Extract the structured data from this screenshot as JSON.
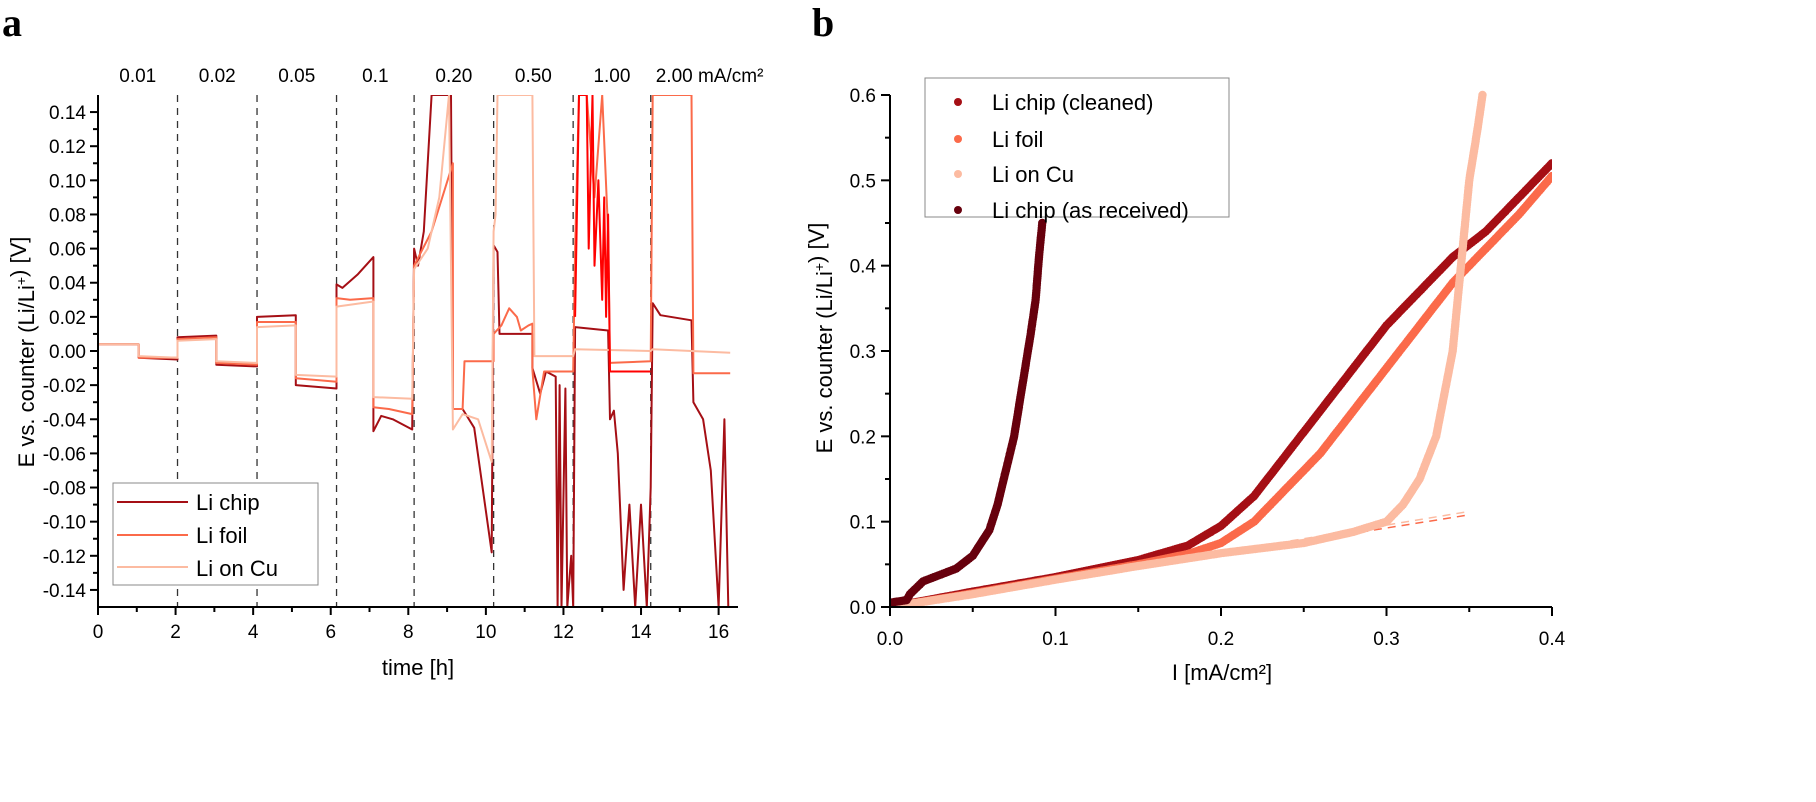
{
  "figure": {
    "panel_a_label": "a",
    "panel_b_label": "b"
  },
  "chart_data": [
    {
      "id": "a",
      "type": "line",
      "title": "",
      "xlabel": "time [h]",
      "ylabel": "E vs. counter (Li/Li+) [V]",
      "xlim": [
        0,
        16.5
      ],
      "ylim": [
        -0.15,
        0.15
      ],
      "xticks": [
        0,
        2,
        4,
        6,
        8,
        10,
        12,
        14,
        16
      ],
      "xtick_labels": [
        "0",
        "2",
        "4",
        "6",
        "8",
        "10",
        "12",
        "14",
        "16"
      ],
      "yticks": [
        0.14,
        0.12,
        0.1,
        0.08,
        0.06,
        0.04,
        0.02,
        0.0,
        -0.02,
        -0.04,
        -0.06,
        -0.08,
        -0.1,
        -0.12,
        -0.14
      ],
      "ytick_labels": [
        "0.14",
        "0.12",
        "0.10",
        "0.08",
        "0.06",
        "0.04",
        "0.02",
        "0.00",
        "-0.02",
        "-0.04",
        "-0.06",
        "-0.08",
        "-0.10",
        "-0.12",
        "-0.14"
      ],
      "current_density_labels": [
        "0.01",
        "0.02",
        "0.05",
        "0.1",
        "0.20",
        "0.50",
        "1.00",
        "2.00 mA/cm²"
      ],
      "step_boundaries_h": [
        2.05,
        4.1,
        6.15,
        8.15,
        10.2,
        12.25,
        14.25
      ],
      "legend": {
        "placement": "bottom-left",
        "entries": [
          "Li chip",
          "Li foil",
          "Li on Cu"
        ]
      },
      "grid": false,
      "series": [
        {
          "name": "Li chip",
          "color": "#a50f15",
          "points": [
            [
              0,
              0.004
            ],
            [
              1.05,
              0.004
            ],
            [
              1.05,
              -0.004
            ],
            [
              2.05,
              -0.005
            ],
            [
              2.05,
              0.008
            ],
            [
              3.05,
              0.009
            ],
            [
              3.05,
              -0.008
            ],
            [
              4.1,
              -0.009
            ],
            [
              4.1,
              0.02
            ],
            [
              5.1,
              0.021
            ],
            [
              5.1,
              -0.02
            ],
            [
              6.15,
              -0.022
            ],
            [
              6.15,
              0.039
            ],
            [
              6.3,
              0.037
            ],
            [
              6.7,
              0.045
            ],
            [
              7.1,
              0.055
            ],
            [
              7.1,
              -0.047
            ],
            [
              7.3,
              -0.038
            ],
            [
              7.6,
              -0.04
            ],
            [
              8.1,
              -0.046
            ],
            [
              8.15,
              0.06
            ],
            [
              8.25,
              0.05
            ],
            [
              8.4,
              0.07
            ],
            [
              8.6,
              0.15
            ],
            [
              9.1,
              0.15
            ],
            [
              9.15,
              -0.034
            ],
            [
              9.4,
              -0.034
            ],
            [
              9.7,
              -0.045
            ],
            [
              10.15,
              -0.118
            ],
            [
              10.2,
              0.062
            ],
            [
              10.3,
              0.058
            ],
            [
              10.35,
              0.01
            ],
            [
              11.2,
              0.01
            ],
            [
              11.2,
              -0.01
            ],
            [
              11.4,
              -0.025
            ],
            [
              11.55,
              -0.012
            ],
            [
              11.8,
              -0.015
            ],
            [
              11.85,
              -0.15
            ],
            [
              11.9,
              -0.02
            ],
            [
              11.95,
              -0.15
            ],
            [
              12.05,
              -0.022
            ],
            [
              12.1,
              -0.15
            ],
            [
              12.2,
              -0.12
            ],
            [
              12.25,
              -0.15
            ],
            [
              12.3,
              0.014
            ],
            [
              13.15,
              0.012
            ],
            [
              13.2,
              -0.04
            ],
            [
              13.3,
              -0.035
            ],
            [
              13.4,
              -0.06
            ],
            [
              13.55,
              -0.14
            ],
            [
              13.7,
              -0.09
            ],
            [
              13.85,
              -0.15
            ],
            [
              14.0,
              -0.09
            ],
            [
              14.15,
              -0.15
            ],
            [
              14.25,
              -0.08
            ],
            [
              14.3,
              0.028
            ],
            [
              14.5,
              0.021
            ],
            [
              15.3,
              0.018
            ],
            [
              15.35,
              -0.03
            ],
            [
              15.6,
              -0.04
            ],
            [
              15.8,
              -0.07
            ],
            [
              16.0,
              -0.15
            ],
            [
              16.15,
              -0.04
            ],
            [
              16.25,
              -0.15
            ]
          ]
        },
        {
          "name": "Li foil",
          "color": "#fb6a4a",
          "points": [
            [
              0,
              0.004
            ],
            [
              1.05,
              0.004
            ],
            [
              1.05,
              -0.004
            ],
            [
              2.05,
              -0.004
            ],
            [
              2.05,
              0.007
            ],
            [
              3.05,
              0.008
            ],
            [
              3.05,
              -0.007
            ],
            [
              4.1,
              -0.008
            ],
            [
              4.1,
              0.017
            ],
            [
              5.1,
              0.017
            ],
            [
              5.1,
              -0.016
            ],
            [
              6.15,
              -0.018
            ],
            [
              6.15,
              0.031
            ],
            [
              6.5,
              0.03
            ],
            [
              7.1,
              0.031
            ],
            [
              7.1,
              -0.033
            ],
            [
              7.5,
              -0.034
            ],
            [
              8.1,
              -0.037
            ],
            [
              8.15,
              0.05
            ],
            [
              8.6,
              0.07
            ],
            [
              9.15,
              0.11
            ],
            [
              9.15,
              -0.034
            ],
            [
              9.4,
              -0.034
            ],
            [
              9.45,
              -0.006
            ],
            [
              10.2,
              -0.006
            ],
            [
              10.2,
              0.01
            ],
            [
              10.4,
              0.015
            ],
            [
              10.6,
              0.025
            ],
            [
              10.8,
              0.02
            ],
            [
              10.9,
              0.012
            ],
            [
              11.1,
              0.015
            ],
            [
              11.2,
              0.016
            ],
            [
              11.2,
              -0.011
            ],
            [
              11.3,
              -0.04
            ],
            [
              11.5,
              -0.012
            ],
            [
              12.25,
              -0.012
            ],
            [
              12.3,
              0.06
            ],
            [
              12.4,
              0.15
            ],
            [
              12.6,
              0.15
            ],
            [
              12.8,
              0.09
            ],
            [
              13.0,
              0.15
            ],
            [
              13.15,
              0.07
            ],
            [
              13.2,
              -0.007
            ],
            [
              14.25,
              -0.006
            ],
            [
              14.3,
              0.15
            ],
            [
              15.3,
              0.15
            ],
            [
              15.35,
              -0.013
            ],
            [
              16.3,
              -0.013
            ]
          ]
        },
        {
          "name": "Li on Cu",
          "color": "#fcbba1",
          "points": [
            [
              0,
              0.004
            ],
            [
              1.05,
              0.004
            ],
            [
              1.05,
              -0.003
            ],
            [
              2.05,
              -0.004
            ],
            [
              2.05,
              0.006
            ],
            [
              3.05,
              0.007
            ],
            [
              3.05,
              -0.006
            ],
            [
              4.1,
              -0.007
            ],
            [
              4.1,
              0.014
            ],
            [
              5.1,
              0.015
            ],
            [
              5.1,
              -0.014
            ],
            [
              6.15,
              -0.015
            ],
            [
              6.15,
              0.026
            ],
            [
              7.1,
              0.029
            ],
            [
              7.1,
              -0.027
            ],
            [
              8.1,
              -0.028
            ],
            [
              8.15,
              0.048
            ],
            [
              8.5,
              0.06
            ],
            [
              8.8,
              0.09
            ],
            [
              9.05,
              0.15
            ],
            [
              9.15,
              -0.046
            ],
            [
              9.4,
              -0.037
            ],
            [
              9.8,
              -0.04
            ],
            [
              10.15,
              -0.065
            ],
            [
              10.2,
              0.07
            ],
            [
              10.25,
              0.08
            ],
            [
              10.3,
              0.15
            ],
            [
              11.2,
              0.15
            ],
            [
              11.25,
              -0.003
            ],
            [
              12.25,
              -0.003
            ],
            [
              12.3,
              0.001
            ],
            [
              14.25,
              0.0
            ],
            [
              14.3,
              0.001
            ],
            [
              16.3,
              -0.001
            ]
          ]
        },
        {
          "name": "Li chip (1.00 segment, bright red)",
          "color": "#ff0000",
          "legend_hidden": true,
          "points": [
            [
              12.3,
              0.02
            ],
            [
              12.4,
              0.15
            ],
            [
              12.6,
              0.15
            ],
            [
              12.65,
              0.06
            ],
            [
              12.75,
              0.15
            ],
            [
              12.8,
              0.05
            ],
            [
              12.9,
              0.1
            ],
            [
              13.0,
              0.03
            ],
            [
              13.05,
              0.09
            ],
            [
              13.1,
              0.02
            ],
            [
              13.15,
              0.08
            ],
            [
              13.2,
              -0.012
            ],
            [
              14.25,
              -0.012
            ]
          ]
        }
      ]
    },
    {
      "id": "b",
      "type": "scatter",
      "title": "",
      "xlabel": "I [mA/cm²]",
      "ylabel": "E vs. counter (Li/Li+) [V]",
      "xlim": [
        0.0,
        0.4
      ],
      "ylim": [
        0.0,
        0.6
      ],
      "xticks": [
        0.0,
        0.1,
        0.2,
        0.3,
        0.4
      ],
      "xtick_labels": [
        "0.0",
        "0.1",
        "0.2",
        "0.3",
        "0.4"
      ],
      "yticks": [
        0.0,
        0.1,
        0.2,
        0.3,
        0.4,
        0.5,
        0.6
      ],
      "ytick_labels": [
        "0.0",
        "0.1",
        "0.2",
        "0.3",
        "0.4",
        "0.5",
        "0.6"
      ],
      "legend": {
        "placement": "top-left",
        "entries": [
          "Li chip (cleaned)",
          "Li foil",
          "Li on Cu",
          "Li chip (as received)"
        ]
      },
      "grid": false,
      "series": [
        {
          "name": "Li chip (cleaned)",
          "color": "#a50f15",
          "points": [
            [
              0,
              0
            ],
            [
              0.05,
              0.018
            ],
            [
              0.1,
              0.035
            ],
            [
              0.15,
              0.055
            ],
            [
              0.18,
              0.072
            ],
            [
              0.2,
              0.095
            ],
            [
              0.22,
              0.13
            ],
            [
              0.24,
              0.18
            ],
            [
              0.26,
              0.23
            ],
            [
              0.28,
              0.28
            ],
            [
              0.3,
              0.33
            ],
            [
              0.32,
              0.37
            ],
            [
              0.34,
              0.41
            ],
            [
              0.36,
              0.44
            ],
            [
              0.38,
              0.48
            ],
            [
              0.4,
              0.52
            ]
          ]
        },
        {
          "name": "Li foil",
          "color": "#fb6a4a",
          "points": [
            [
              0,
              0
            ],
            [
              0.05,
              0.016
            ],
            [
              0.1,
              0.033
            ],
            [
              0.15,
              0.05
            ],
            [
              0.18,
              0.062
            ],
            [
              0.2,
              0.075
            ],
            [
              0.22,
              0.1
            ],
            [
              0.24,
              0.14
            ],
            [
              0.26,
              0.18
            ],
            [
              0.28,
              0.23
            ],
            [
              0.3,
              0.28
            ],
            [
              0.32,
              0.33
            ],
            [
              0.34,
              0.38
            ],
            [
              0.36,
              0.42
            ],
            [
              0.38,
              0.46
            ],
            [
              0.4,
              0.505
            ]
          ]
        },
        {
          "name": "Li on Cu",
          "color": "#fcbba1",
          "points": [
            [
              0,
              0
            ],
            [
              0.05,
              0.015
            ],
            [
              0.1,
              0.032
            ],
            [
              0.15,
              0.048
            ],
            [
              0.2,
              0.063
            ],
            [
              0.25,
              0.075
            ],
            [
              0.28,
              0.088
            ],
            [
              0.3,
              0.1
            ],
            [
              0.31,
              0.12
            ],
            [
              0.32,
              0.15
            ],
            [
              0.33,
              0.2
            ],
            [
              0.335,
              0.25
            ],
            [
              0.34,
              0.3
            ],
            [
              0.345,
              0.4
            ],
            [
              0.35,
              0.5
            ],
            [
              0.355,
              0.56
            ],
            [
              0.358,
              0.6
            ]
          ]
        },
        {
          "name": "Li chip (as received)",
          "color": "#67000d",
          "points": [
            [
              0,
              0.005
            ],
            [
              0.01,
              0.008
            ],
            [
              0.012,
              0.015
            ],
            [
              0.02,
              0.03
            ],
            [
              0.04,
              0.045
            ],
            [
              0.05,
              0.06
            ],
            [
              0.06,
              0.09
            ],
            [
              0.065,
              0.12
            ],
            [
              0.07,
              0.16
            ],
            [
              0.075,
              0.2
            ],
            [
              0.08,
              0.26
            ],
            [
              0.085,
              0.32
            ],
            [
              0.088,
              0.36
            ],
            [
              0.09,
              0.41
            ],
            [
              0.092,
              0.45
            ]
          ]
        }
      ],
      "fit_lines": [
        {
          "name": "Li foil linear fit",
          "color": "#fb6a4a",
          "dashed": true,
          "points": [
            [
              0,
              0
            ],
            [
              0.35,
              0.108
            ]
          ]
        },
        {
          "name": "Li on Cu linear fit",
          "color": "#fcbba1",
          "dashed": true,
          "points": [
            [
              0,
              0
            ],
            [
              0.35,
              0.112
            ]
          ]
        }
      ]
    }
  ]
}
